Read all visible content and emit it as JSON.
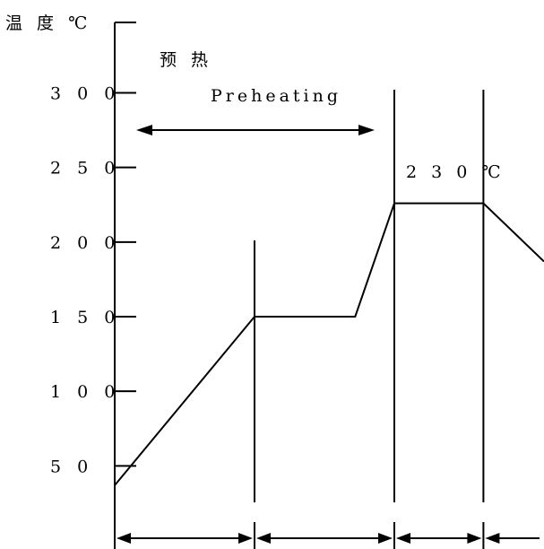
{
  "chart_data": {
    "type": "line",
    "title": "",
    "ylabel": "温 度 ℃",
    "xlabel": "",
    "ylim": [
      25,
      330
    ],
    "yticks": [
      50,
      100,
      150,
      200,
      250,
      300
    ],
    "ytick_labels": [
      "5 0",
      "1 0 0",
      "1 5 0",
      "2 0 0",
      "2 5 0",
      "3 0 0"
    ],
    "series": [
      {
        "points": [
          {
            "x": 0,
            "y": 37
          },
          {
            "x": 1,
            "y": 150
          },
          {
            "x": 1.72,
            "y": 150
          },
          {
            "x": 2,
            "y": 226
          },
          {
            "x": 2.7,
            "y": 226
          },
          {
            "x": 3.5,
            "y": 187
          }
        ]
      }
    ],
    "phase_boundaries": [
      1,
      2,
      2.7,
      3.5
    ],
    "annotations": {
      "preheat_cn": "预 热",
      "preheat_en": "Preheating",
      "peak_temp": "2 3 0 ℃"
    },
    "grid": false,
    "legend": "none"
  }
}
